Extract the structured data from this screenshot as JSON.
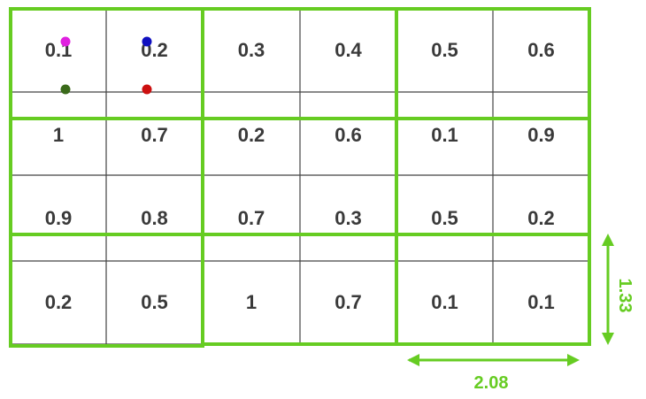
{
  "grid": {
    "values": [
      [
        "0.1",
        "0.2",
        "0.3",
        "0.4",
        "0.5",
        "0.6"
      ],
      [
        "1",
        "0.7",
        "0.2",
        "0.6",
        "0.1",
        "0.9"
      ],
      [
        "0.9",
        "0.8",
        "0.7",
        "0.3",
        "0.5",
        "0.2"
      ],
      [
        "0.2",
        "0.5",
        "1",
        "0.7",
        "0.1",
        "0.1"
      ]
    ]
  },
  "dimensions": {
    "width_label": "2.08",
    "height_label": "1.33"
  },
  "markers": [
    {
      "name": "magenta-dot",
      "color": "#e020e0"
    },
    {
      "name": "blue-dot",
      "color": "#1010c0"
    },
    {
      "name": "green-dot",
      "color": "#3a6a1a"
    },
    {
      "name": "red-dot",
      "color": "#cc1010"
    }
  ],
  "colors": {
    "accent": "#66cc22",
    "grid_line": "#444444",
    "text": "#3a3a3a"
  }
}
